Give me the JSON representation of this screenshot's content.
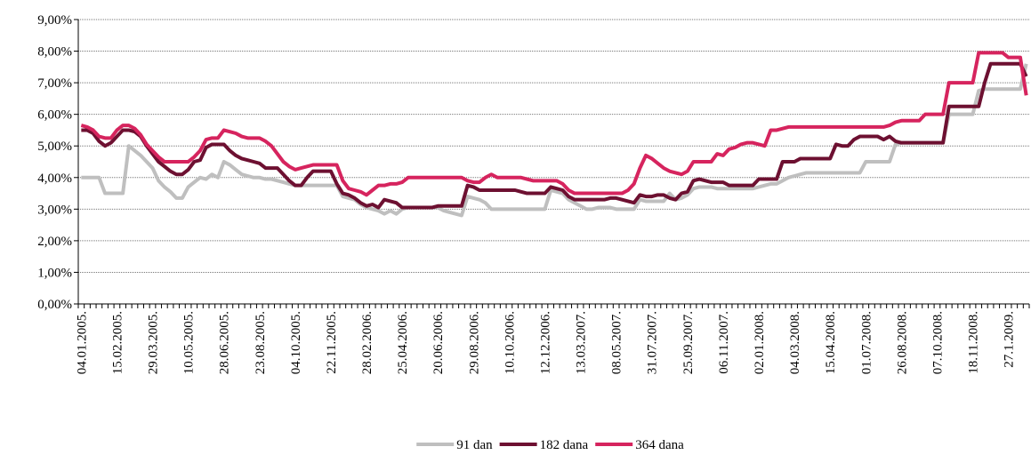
{
  "chart_data": {
    "type": "line",
    "categories": [
      "04.01.2005.",
      null,
      null,
      null,
      null,
      null,
      "15.02.2005.",
      null,
      null,
      null,
      null,
      null,
      "29.03.2005.",
      null,
      null,
      null,
      null,
      null,
      "10.05.2005.",
      null,
      null,
      null,
      null,
      null,
      "28.06.2005.",
      null,
      null,
      null,
      null,
      null,
      "23.08.2005.",
      null,
      null,
      null,
      null,
      null,
      "04.10.2005.",
      null,
      null,
      null,
      null,
      null,
      "22.11.2005.",
      null,
      null,
      null,
      null,
      null,
      "28.02.2006.",
      null,
      null,
      null,
      null,
      null,
      "25.04.2006.",
      null,
      null,
      null,
      null,
      null,
      "20.06.2006.",
      null,
      null,
      null,
      null,
      null,
      "29.08.2006.",
      null,
      null,
      null,
      null,
      null,
      "10.10.2006.",
      null,
      null,
      null,
      null,
      null,
      "12.12.2006.",
      null,
      null,
      null,
      null,
      null,
      "13.03.2007.",
      null,
      null,
      null,
      null,
      null,
      "08.05.2007.",
      null,
      null,
      null,
      null,
      null,
      "31.07.2007.",
      null,
      null,
      null,
      null,
      null,
      "25.09.2007.",
      null,
      null,
      null,
      null,
      null,
      "06.11.2007.",
      null,
      null,
      null,
      null,
      null,
      "02.01.2008.",
      null,
      null,
      null,
      null,
      null,
      "04.03.2008.",
      null,
      null,
      null,
      null,
      null,
      "15.04.2008.",
      null,
      null,
      null,
      null,
      null,
      "01.07.2008.",
      null,
      null,
      null,
      null,
      null,
      "26.08.2008.",
      null,
      null,
      null,
      null,
      null,
      "07.10.2008.",
      null,
      null,
      null,
      null,
      null,
      "18.11.2008.",
      null,
      null,
      null,
      null,
      null,
      "27.1.2009.",
      null,
      null,
      null
    ],
    "series": [
      {
        "name": "91 dan",
        "color": "#bfbfbf",
        "values": [
          4.0,
          4.0,
          4.0,
          4.0,
          3.5,
          3.5,
          3.5,
          3.5,
          5.0,
          4.85,
          4.7,
          4.5,
          4.3,
          3.9,
          3.7,
          3.55,
          3.35,
          3.35,
          3.7,
          3.85,
          4.0,
          3.95,
          4.1,
          4.0,
          4.5,
          4.4,
          4.25,
          4.1,
          4.05,
          4.0,
          4.0,
          3.95,
          3.95,
          3.9,
          3.85,
          3.8,
          3.75,
          3.75,
          3.75,
          3.75,
          3.75,
          3.75,
          3.75,
          3.75,
          3.4,
          3.35,
          3.3,
          3.15,
          3.05,
          3.0,
          2.95,
          2.85,
          2.95,
          2.85,
          3.0,
          3.05,
          3.05,
          3.05,
          3.05,
          3.05,
          3.05,
          2.95,
          2.9,
          2.85,
          2.8,
          3.4,
          3.35,
          3.3,
          3.2,
          3.0,
          3.0,
          3.0,
          3.0,
          3.0,
          3.0,
          3.0,
          3.0,
          3.0,
          3.0,
          3.6,
          3.55,
          3.5,
          3.3,
          3.2,
          3.1,
          3.0,
          3.0,
          3.05,
          3.05,
          3.05,
          3.0,
          3.0,
          3.0,
          3.0,
          3.3,
          3.25,
          3.25,
          3.25,
          3.25,
          3.5,
          3.3,
          3.35,
          3.45,
          3.65,
          3.7,
          3.7,
          3.7,
          3.65,
          3.65,
          3.65,
          3.65,
          3.65,
          3.65,
          3.65,
          3.7,
          3.75,
          3.8,
          3.8,
          3.9,
          4.0,
          4.05,
          4.1,
          4.15,
          4.15,
          4.15,
          4.15,
          4.15,
          4.15,
          4.15,
          4.15,
          4.15,
          4.15,
          4.5,
          4.5,
          4.5,
          4.5,
          4.5,
          5.05,
          5.1,
          5.1,
          5.1,
          5.1,
          5.1,
          5.1,
          5.1,
          5.1,
          6.0,
          6.0,
          6.0,
          6.0,
          6.0,
          6.75,
          6.8,
          6.8,
          6.8,
          6.8,
          6.8,
          6.8,
          6.8,
          7.6
        ]
      },
      {
        "name": "182 dana",
        "color": "#6d1031",
        "values": [
          5.5,
          5.5,
          5.4,
          5.15,
          5.0,
          5.1,
          5.3,
          5.5,
          5.5,
          5.45,
          5.3,
          5.0,
          4.75,
          4.5,
          4.35,
          4.2,
          4.1,
          4.1,
          4.25,
          4.5,
          4.55,
          4.95,
          5.05,
          5.05,
          5.05,
          4.85,
          4.7,
          4.6,
          4.55,
          4.5,
          4.45,
          4.3,
          4.3,
          4.3,
          4.1,
          3.9,
          3.75,
          3.75,
          4.0,
          4.2,
          4.2,
          4.2,
          4.2,
          3.8,
          3.5,
          3.45,
          3.35,
          3.2,
          3.1,
          3.15,
          3.05,
          3.3,
          3.25,
          3.2,
          3.05,
          3.05,
          3.05,
          3.05,
          3.05,
          3.05,
          3.1,
          3.1,
          3.1,
          3.1,
          3.1,
          3.75,
          3.7,
          3.6,
          3.6,
          3.6,
          3.6,
          3.6,
          3.6,
          3.6,
          3.55,
          3.5,
          3.5,
          3.5,
          3.5,
          3.7,
          3.65,
          3.6,
          3.4,
          3.3,
          3.3,
          3.3,
          3.3,
          3.3,
          3.3,
          3.35,
          3.35,
          3.3,
          3.25,
          3.2,
          3.45,
          3.4,
          3.4,
          3.45,
          3.45,
          3.35,
          3.3,
          3.5,
          3.55,
          3.9,
          3.95,
          3.9,
          3.85,
          3.85,
          3.85,
          3.75,
          3.75,
          3.75,
          3.75,
          3.75,
          3.95,
          3.95,
          3.95,
          3.95,
          4.5,
          4.5,
          4.5,
          4.6,
          4.6,
          4.6,
          4.6,
          4.6,
          4.6,
          5.05,
          5.0,
          5.0,
          5.2,
          5.3,
          5.3,
          5.3,
          5.3,
          5.2,
          5.3,
          5.15,
          5.1,
          5.1,
          5.1,
          5.1,
          5.1,
          5.1,
          5.1,
          5.1,
          6.25,
          6.25,
          6.25,
          6.25,
          6.25,
          6.25,
          7.0,
          7.6,
          7.6,
          7.6,
          7.6,
          7.6,
          7.6,
          7.2
        ]
      },
      {
        "name": "364 dana",
        "color": "#d6245e",
        "values": [
          5.65,
          5.6,
          5.5,
          5.3,
          5.25,
          5.25,
          5.5,
          5.65,
          5.65,
          5.55,
          5.35,
          5.05,
          4.85,
          4.65,
          4.5,
          4.5,
          4.5,
          4.5,
          4.5,
          4.65,
          4.85,
          5.2,
          5.25,
          5.25,
          5.5,
          5.45,
          5.4,
          5.3,
          5.25,
          5.25,
          5.25,
          5.15,
          5.0,
          4.75,
          4.5,
          4.35,
          4.25,
          4.3,
          4.35,
          4.4,
          4.4,
          4.4,
          4.4,
          4.4,
          3.9,
          3.65,
          3.6,
          3.55,
          3.45,
          3.6,
          3.75,
          3.75,
          3.8,
          3.8,
          3.85,
          4.0,
          4.0,
          4.0,
          4.0,
          4.0,
          4.0,
          4.0,
          4.0,
          4.0,
          4.0,
          3.9,
          3.85,
          3.85,
          4.0,
          4.1,
          4.0,
          4.0,
          4.0,
          4.0,
          4.0,
          3.95,
          3.9,
          3.9,
          3.9,
          3.9,
          3.9,
          3.8,
          3.6,
          3.5,
          3.5,
          3.5,
          3.5,
          3.5,
          3.5,
          3.5,
          3.5,
          3.5,
          3.6,
          3.8,
          4.3,
          4.7,
          4.6,
          4.45,
          4.3,
          4.2,
          4.15,
          4.1,
          4.2,
          4.5,
          4.5,
          4.5,
          4.5,
          4.75,
          4.7,
          4.9,
          4.95,
          5.05,
          5.1,
          5.1,
          5.05,
          5.0,
          5.5,
          5.5,
          5.55,
          5.6,
          5.6,
          5.6,
          5.6,
          5.6,
          5.6,
          5.6,
          5.6,
          5.6,
          5.6,
          5.6,
          5.6,
          5.6,
          5.6,
          5.6,
          5.6,
          5.6,
          5.65,
          5.75,
          5.8,
          5.8,
          5.8,
          5.8,
          6.0,
          6.0,
          6.0,
          6.0,
          7.0,
          7.0,
          7.0,
          7.0,
          7.0,
          7.95,
          7.95,
          7.95,
          7.95,
          7.95,
          7.8,
          7.8,
          7.8,
          6.6
        ]
      }
    ],
    "ylim": [
      0,
      9
    ],
    "yticks": [
      {
        "value": 0,
        "label": "0,00%"
      },
      {
        "value": 1,
        "label": "1,00%"
      },
      {
        "value": 2,
        "label": "2,00%"
      },
      {
        "value": 3,
        "label": "3,00%"
      },
      {
        "value": 4,
        "label": "4,00%"
      },
      {
        "value": 5,
        "label": "5,00%"
      },
      {
        "value": 6,
        "label": "6,00%"
      },
      {
        "value": 7,
        "label": "7,00%"
      },
      {
        "value": 8,
        "label": "8,00%"
      },
      {
        "value": 9,
        "label": "9,00%"
      }
    ],
    "grid": true,
    "legend": "bottom"
  }
}
